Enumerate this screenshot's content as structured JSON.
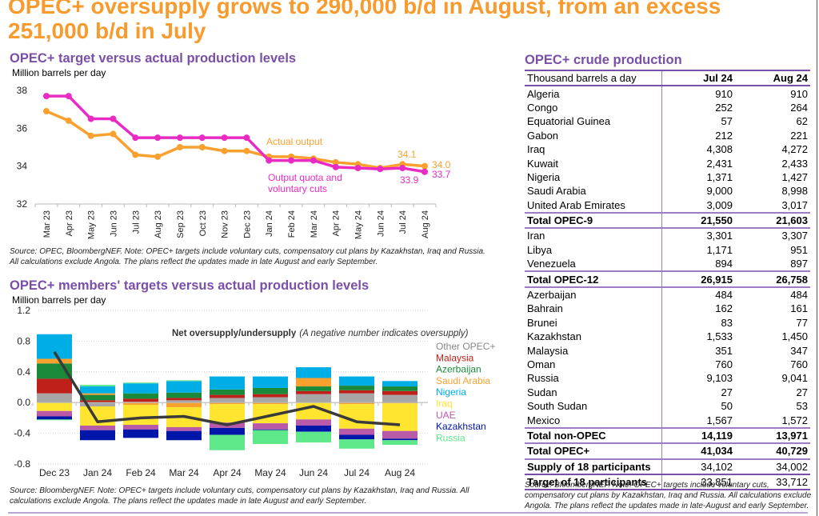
{
  "headline": "OPEC+ oversupply grows to 290,000 b/d in August, from an excess 251,000 b/d in July",
  "colors": {
    "headline": "#f79b2e",
    "section_title": "#7a4fa8",
    "actual_output": "#f9a02f",
    "quota": "#e82bc3",
    "net_line": "#3a3a3a"
  },
  "chart_data": [
    {
      "type": "line",
      "title": "OPEC+ target versus actual production levels",
      "ylabel": "Million barrels per day",
      "xlabel": "",
      "ylim": [
        32,
        38
      ],
      "yticks": [
        "32",
        "34",
        "36",
        "38"
      ],
      "grid": false,
      "categories": [
        "Mar 23",
        "Apr 23",
        "May 23",
        "Jun 23",
        "Jul 23",
        "Aug 23",
        "Sep 23",
        "Oct 23",
        "Nov 23",
        "Dec 23",
        "Jan 24",
        "Feb 24",
        "Mar 24",
        "Apr 24",
        "May 24",
        "Jun 24",
        "Jul 24",
        "Aug 24"
      ],
      "series": [
        {
          "name": "Actual output",
          "color": "#f9a02f",
          "values": [
            36.9,
            36.4,
            35.6,
            35.7,
            34.6,
            34.5,
            35.0,
            35.0,
            34.8,
            34.8,
            34.5,
            34.5,
            34.4,
            34.2,
            34.1,
            33.9,
            34.1,
            34.0
          ]
        },
        {
          "name": "Output quota and voluntary cuts",
          "color": "#e82bc3",
          "values": [
            37.7,
            37.7,
            36.5,
            36.5,
            35.5,
            35.5,
            35.5,
            35.5,
            35.5,
            35.5,
            34.3,
            34.3,
            34.3,
            33.95,
            33.9,
            33.85,
            33.9,
            33.7
          ]
        }
      ],
      "annotations": [
        {
          "text": "Actual output",
          "series": "Actual output"
        },
        {
          "text": "Output quota and voluntary cuts",
          "series": "Output quota and voluntary cuts"
        },
        {
          "text": "34.1",
          "category": "Jul 24",
          "series": "Actual output"
        },
        {
          "text": "34.0",
          "category": "Aug 24",
          "series": "Actual output"
        },
        {
          "text": "33.9",
          "category": "Jul 24",
          "series": "Output quota and voluntary cuts"
        },
        {
          "text": "33.7",
          "category": "Aug 24",
          "series": "Output quota and voluntary cuts"
        }
      ],
      "note": "Source: OPEC, BloombergNEF. Note: OPEC+ targets include voluntary cuts, compensatory cut plans by Kazakhstan, Iraq and Russia. All calculations exclude Angola. The plans reflect the updates made in late August and early September."
    },
    {
      "type": "bar",
      "stacked": true,
      "title": "OPEC+ members' targets versus actual production levels",
      "ylabel": "Million barrels per day",
      "xlabel": "",
      "ylim": [
        -0.8,
        1.2
      ],
      "yticks": [
        "-0.8",
        "-0.4",
        "0.0",
        "0.4",
        "0.8",
        "1.2"
      ],
      "grid": true,
      "legend_position": "right",
      "categories": [
        "Dec 23",
        "Jan 24",
        "Feb 24",
        "Mar 24",
        "Apr 24",
        "May 24",
        "Jun 24",
        "Jul 24",
        "Aug 24"
      ],
      "series": [
        {
          "name": "Other OPEC+",
          "color": "#a6a6a6",
          "values": [
            0.12,
            -0.05,
            0.01,
            0.03,
            0.06,
            0.07,
            0.11,
            0.12,
            0.1
          ]
        },
        {
          "name": "Malaysia",
          "color": "#c0201a",
          "values": [
            0.19,
            0.03,
            0.04,
            0.03,
            0.04,
            0.04,
            0.04,
            0.04,
            0.05
          ]
        },
        {
          "name": "Azerbaijan",
          "color": "#1a8a3a",
          "values": [
            0.2,
            0.07,
            0.07,
            0.07,
            0.07,
            0.08,
            0.06,
            0.06,
            0.06
          ]
        },
        {
          "name": "Saudi Arabia",
          "color": "#f9a02f",
          "values": [
            0.06,
            0.02,
            -0.03,
            -0.06,
            -0.02,
            -0.02,
            0.11,
            -0.02,
            -0.01
          ]
        },
        {
          "name": "Nigeria",
          "color": "#00aee6",
          "values": [
            0.32,
            0.09,
            0.13,
            0.15,
            0.17,
            0.15,
            0.14,
            0.12,
            0.07
          ]
        },
        {
          "name": "Iraq",
          "color": "#ffe430",
          "values": [
            -0.11,
            -0.25,
            -0.26,
            -0.26,
            -0.24,
            -0.25,
            -0.22,
            -0.32,
            -0.36
          ]
        },
        {
          "name": "UAE",
          "color": "#b85aa8",
          "values": [
            -0.07,
            -0.06,
            -0.06,
            -0.05,
            -0.07,
            -0.08,
            -0.08,
            -0.08,
            -0.1
          ]
        },
        {
          "name": "Kazakhstan",
          "color": "#0016a8",
          "values": [
            -0.04,
            -0.13,
            -0.11,
            -0.12,
            -0.09,
            -0.01,
            -0.08,
            -0.06,
            -0.02
          ]
        },
        {
          "name": "Russia",
          "color": "#5ee88a",
          "values": [
            -0.01,
            0.02,
            0.01,
            0.01,
            -0.2,
            -0.18,
            -0.14,
            -0.12,
            -0.06
          ]
        }
      ],
      "net_line": {
        "name": "Net oversupply/undersupply",
        "annotation_bold": "Net oversupply/undersupply",
        "annotation_italic": "(A negative number indicates oversupply)",
        "values": [
          0.66,
          -0.25,
          -0.2,
          -0.18,
          -0.29,
          -0.17,
          -0.05,
          -0.25,
          -0.29
        ]
      },
      "note": "Source: BloombergNEF. Note: OPEC+ targets include voluntary cuts, compensatory cut plans by Kazakhstan, Iraq and Russia. All calculations exclude Angola. The plans reflect the updates made in late August and early September."
    },
    {
      "type": "table",
      "title": "OPEC+ crude production",
      "columns": [
        "Thousand barrels a day",
        "Jul 24",
        "Aug 24"
      ],
      "rows": [
        {
          "label": "Algeria",
          "jul": "910",
          "aug": "910",
          "kind": "row"
        },
        {
          "label": "Congo",
          "jul": "252",
          "aug": "264",
          "kind": "row"
        },
        {
          "label": "Equatorial Guinea",
          "jul": "57",
          "aug": "62",
          "kind": "row"
        },
        {
          "label": "Gabon",
          "jul": "212",
          "aug": "221",
          "kind": "row"
        },
        {
          "label": "Iraq",
          "jul": "4,308",
          "aug": "4,272",
          "kind": "row"
        },
        {
          "label": "Kuwait",
          "jul": "2,431",
          "aug": "2,433",
          "kind": "row"
        },
        {
          "label": "Nigeria",
          "jul": "1,371",
          "aug": "1,427",
          "kind": "row"
        },
        {
          "label": "Saudi Arabia",
          "jul": "9,000",
          "aug": "8,998",
          "kind": "row"
        },
        {
          "label": "United Arab Emirates",
          "jul": "3,009",
          "aug": "3,017",
          "kind": "row"
        },
        {
          "label": "Total OPEC-9",
          "jul": "21,550",
          "aug": "21,603",
          "kind": "total"
        },
        {
          "label": "Iran",
          "jul": "3,301",
          "aug": "3,307",
          "kind": "row"
        },
        {
          "label": "Libya",
          "jul": "1,171",
          "aug": "951",
          "kind": "row"
        },
        {
          "label": "Venezuela",
          "jul": "894",
          "aug": "897",
          "kind": "row"
        },
        {
          "label": "Total OPEC-12",
          "jul": "26,915",
          "aug": "26,758",
          "kind": "total"
        },
        {
          "label": "Azerbaijan",
          "jul": "484",
          "aug": "484",
          "kind": "row"
        },
        {
          "label": "Bahrain",
          "jul": "162",
          "aug": "161",
          "kind": "row"
        },
        {
          "label": "Brunei",
          "jul": "83",
          "aug": "77",
          "kind": "row"
        },
        {
          "label": "Kazakhstan",
          "jul": "1,533",
          "aug": "1,450",
          "kind": "row"
        },
        {
          "label": "Malaysia",
          "jul": "351",
          "aug": "347",
          "kind": "row"
        },
        {
          "label": "Oman",
          "jul": "760",
          "aug": "760",
          "kind": "row"
        },
        {
          "label": "Russia",
          "jul": "9,103",
          "aug": "9,041",
          "kind": "row"
        },
        {
          "label": "Sudan",
          "jul": "27",
          "aug": "27",
          "kind": "row"
        },
        {
          "label": "South Sudan",
          "jul": "50",
          "aug": "53",
          "kind": "row"
        },
        {
          "label": "Mexico",
          "jul": "1,567",
          "aug": "1,572",
          "kind": "row"
        },
        {
          "label": "Total non-OPEC",
          "jul": "14,119",
          "aug": "13,971",
          "kind": "total"
        },
        {
          "label": "Total OPEC+",
          "jul": "41,034",
          "aug": "40,729",
          "kind": "total"
        },
        {
          "label": "Supply of 18 participants",
          "jul": "34,102",
          "aug": "34,002",
          "kind": "part"
        },
        {
          "label": "Target of 18 participants",
          "jul": "33,851",
          "aug": "33,712",
          "kind": "part"
        }
      ],
      "note": "Source: BloombergNEF. Note: OPEC+ targets include voluntary cuts, compensatory cut plans by Kazakhstan, Iraq and Russia. All calculations exclude Angola. The plans reflect the updates made in late-August and early September."
    }
  ]
}
